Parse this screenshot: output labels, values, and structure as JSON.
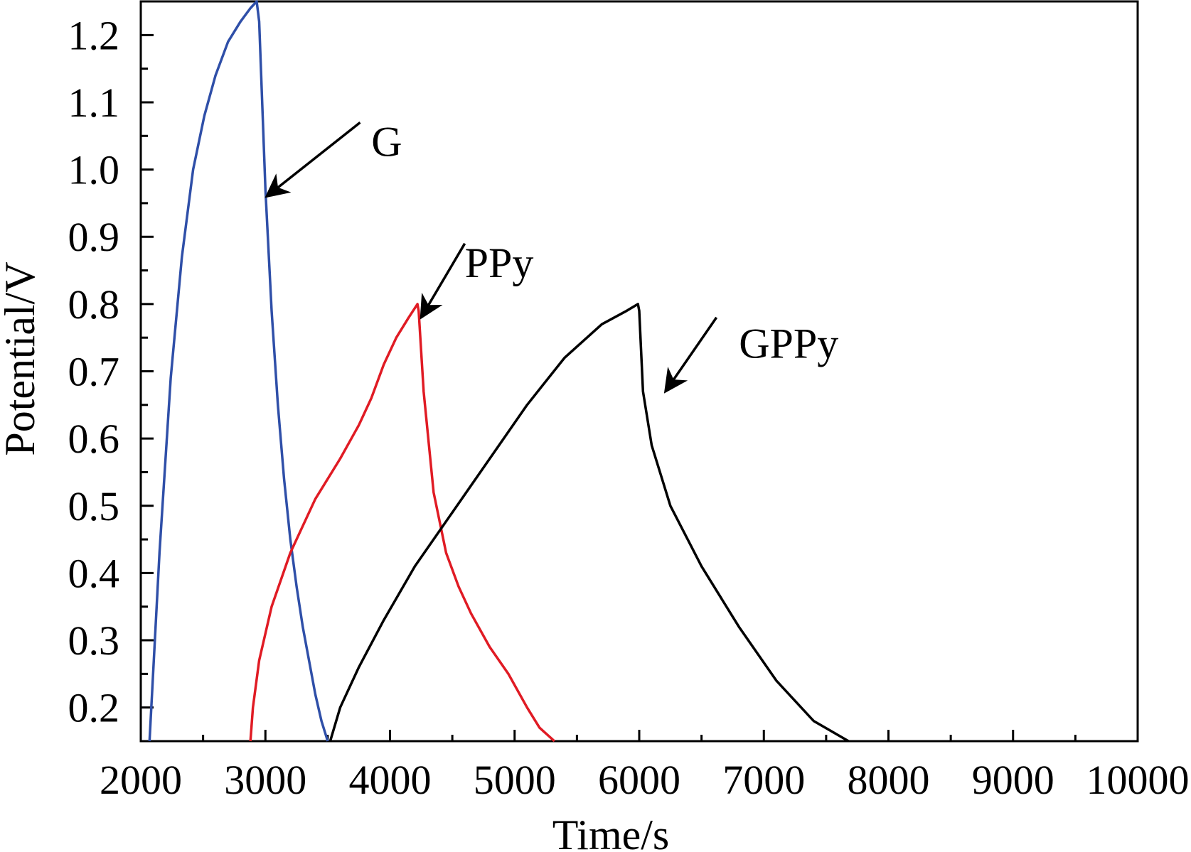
{
  "chart_data": {
    "type": "line",
    "title": "",
    "xlabel": "Time/s",
    "ylabel": "Potential/V",
    "xlim": [
      2000,
      10000
    ],
    "ylim": [
      0.15,
      1.25
    ],
    "x_ticks": [
      2000,
      3000,
      4000,
      5000,
      6000,
      7000,
      8000,
      9000,
      10000
    ],
    "x_tick_labels": [
      "2000",
      "3000",
      "4000",
      "5000",
      "6000",
      "7000",
      "8000",
      "9000",
      "10000"
    ],
    "y_ticks": [
      0.2,
      0.3,
      0.4,
      0.5,
      0.6,
      0.7,
      0.8,
      0.9,
      1.0,
      1.1,
      1.2
    ],
    "y_tick_labels": [
      "0.2",
      "0.3",
      "0.4",
      "0.5",
      "0.6",
      "0.7",
      "0.8",
      "0.9",
      "1.0",
      "1.1",
      "1.2"
    ],
    "grid": false,
    "legend": "none",
    "series": [
      {
        "name": "G",
        "color": "#2f4fa8",
        "x": [
          2070,
          2150,
          2240,
          2330,
          2420,
          2510,
          2600,
          2700,
          2800,
          2880,
          2930,
          2950,
          3000,
          3050,
          3100,
          3150,
          3200,
          3250,
          3300,
          3350,
          3400,
          3450,
          3500
        ],
        "y": [
          0.15,
          0.43,
          0.69,
          0.87,
          1.0,
          1.08,
          1.14,
          1.19,
          1.22,
          1.24,
          1.25,
          1.22,
          0.97,
          0.79,
          0.65,
          0.54,
          0.45,
          0.38,
          0.32,
          0.27,
          0.22,
          0.18,
          0.15
        ],
        "annotation": {
          "label": "G",
          "text_at": [
            3850,
            1.02
          ],
          "arrow_from": [
            3760,
            1.07
          ],
          "arrow_to": [
            3010,
            0.96
          ]
        }
      },
      {
        "name": "PPy",
        "color": "#e01b24",
        "x": [
          2880,
          2900,
          2950,
          3050,
          3200,
          3400,
          3600,
          3750,
          3850,
          3950,
          4050,
          4150,
          4220,
          4230,
          4270,
          4350,
          4450,
          4550,
          4650,
          4800,
          4950,
          5100,
          5200,
          5320
        ],
        "y": [
          0.15,
          0.2,
          0.27,
          0.35,
          0.43,
          0.51,
          0.57,
          0.62,
          0.66,
          0.71,
          0.75,
          0.78,
          0.8,
          0.79,
          0.67,
          0.52,
          0.43,
          0.38,
          0.34,
          0.29,
          0.25,
          0.2,
          0.17,
          0.15
        ],
        "annotation": {
          "label": "PPy",
          "text_at": [
            4600,
            0.84
          ],
          "arrow_from": [
            4600,
            0.89
          ],
          "arrow_to": [
            4250,
            0.78
          ]
        }
      },
      {
        "name": "GPPy",
        "color": "#000000",
        "x": [
          3520,
          3600,
          3750,
          3950,
          4200,
          4500,
          4800,
          5100,
          5400,
          5700,
          5900,
          5990,
          6000,
          6030,
          6100,
          6250,
          6500,
          6800,
          7100,
          7400,
          7680
        ],
        "y": [
          0.15,
          0.2,
          0.26,
          0.33,
          0.41,
          0.49,
          0.57,
          0.65,
          0.72,
          0.77,
          0.79,
          0.8,
          0.79,
          0.67,
          0.59,
          0.5,
          0.41,
          0.32,
          0.24,
          0.18,
          0.15
        ],
        "annotation": {
          "label": "GPPy",
          "text_at": [
            6800,
            0.72
          ],
          "arrow_from": [
            6620,
            0.78
          ],
          "arrow_to": [
            6210,
            0.67
          ]
        }
      }
    ]
  }
}
